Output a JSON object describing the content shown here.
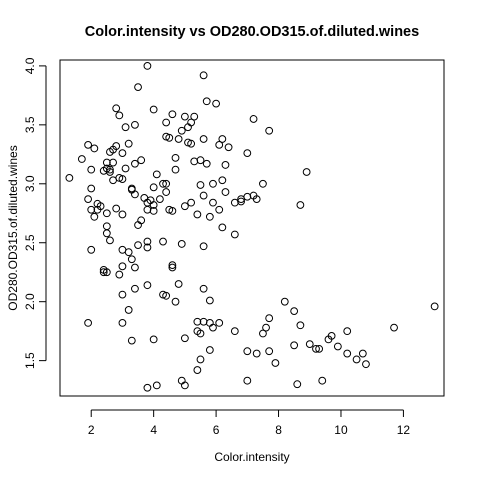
{
  "chart_data": {
    "type": "scatter",
    "title": "Color.intensity vs OD280.OD315.of.diluted.wines",
    "xlabel": "Color.intensity",
    "ylabel": "OD280.OD315.of.diluted.wines",
    "xlim": [
      1.0,
      13.3
    ],
    "ylim": [
      1.2,
      4.05
    ],
    "xticks": [
      2,
      4,
      6,
      8,
      10,
      12
    ],
    "yticks": [
      1.5,
      2.0,
      2.5,
      3.0,
      3.5,
      4.0
    ],
    "xtick_labels": [
      "2",
      "4",
      "6",
      "8",
      "10",
      "12"
    ],
    "ytick_labels": [
      "1.5",
      "2.0",
      "2.5",
      "3.0",
      "3.5",
      "4.0"
    ],
    "grid": false,
    "marker": "open-circle",
    "points": [
      [
        3.8,
        4.0
      ],
      [
        5.6,
        3.92
      ],
      [
        4.0,
        3.63
      ],
      [
        5.7,
        3.7
      ],
      [
        6.0,
        3.68
      ],
      [
        3.5,
        3.82
      ],
      [
        7.2,
        3.55
      ],
      [
        7.7,
        3.45
      ],
      [
        5.0,
        3.57
      ],
      [
        5.3,
        3.57
      ],
      [
        4.6,
        3.59
      ],
      [
        4.4,
        3.52
      ],
      [
        2.8,
        3.64
      ],
      [
        2.9,
        3.58
      ],
      [
        3.1,
        3.48
      ],
      [
        3.4,
        3.5
      ],
      [
        5.2,
        3.52
      ],
      [
        4.9,
        3.45
      ],
      [
        5.1,
        3.48
      ],
      [
        4.8,
        3.38
      ],
      [
        5.6,
        3.38
      ],
      [
        6.2,
        3.38
      ],
      [
        6.1,
        3.33
      ],
      [
        6.4,
        3.31
      ],
      [
        4.4,
        3.4
      ],
      [
        4.5,
        3.39
      ],
      [
        5.1,
        3.35
      ],
      [
        5.2,
        3.34
      ],
      [
        3.2,
        3.34
      ],
      [
        3.0,
        3.26
      ],
      [
        7.0,
        3.26
      ],
      [
        1.9,
        3.33
      ],
      [
        2.1,
        3.3
      ],
      [
        2.6,
        3.27
      ],
      [
        2.7,
        3.29
      ],
      [
        2.8,
        3.32
      ],
      [
        1.7,
        3.21
      ],
      [
        2.5,
        3.18
      ],
      [
        2.7,
        3.18
      ],
      [
        3.4,
        3.17
      ],
      [
        3.6,
        3.2
      ],
      [
        4.7,
        3.22
      ],
      [
        5.3,
        3.19
      ],
      [
        5.5,
        3.2
      ],
      [
        5.7,
        3.17
      ],
      [
        6.3,
        3.16
      ],
      [
        2.0,
        3.12
      ],
      [
        2.5,
        3.13
      ],
      [
        2.6,
        3.12
      ],
      [
        2.6,
        3.1
      ],
      [
        2.4,
        3.11
      ],
      [
        3.1,
        3.13
      ],
      [
        4.1,
        3.08
      ],
      [
        4.7,
        3.12
      ],
      [
        8.9,
        3.1
      ],
      [
        1.3,
        3.05
      ],
      [
        2.7,
        3.03
      ],
      [
        2.9,
        3.05
      ],
      [
        3.0,
        3.04
      ],
      [
        4.3,
        3.0
      ],
      [
        4.4,
        3.0
      ],
      [
        6.2,
        3.03
      ],
      [
        5.5,
        2.99
      ],
      [
        5.9,
        3.0
      ],
      [
        7.5,
        3.0
      ],
      [
        3.3,
        2.96
      ],
      [
        3.3,
        2.95
      ],
      [
        4.0,
        2.97
      ],
      [
        2.0,
        2.96
      ],
      [
        3.4,
        2.91
      ],
      [
        4.4,
        2.93
      ],
      [
        4.2,
        2.87
      ],
      [
        3.9,
        2.86
      ],
      [
        3.7,
        2.88
      ],
      [
        5.6,
        2.9
      ],
      [
        6.3,
        2.93
      ],
      [
        7.2,
        2.9
      ],
      [
        7.3,
        2.87
      ],
      [
        7.0,
        2.89
      ],
      [
        6.8,
        2.87
      ],
      [
        6.8,
        2.85
      ],
      [
        6.6,
        2.84
      ],
      [
        1.9,
        2.87
      ],
      [
        2.2,
        2.83
      ],
      [
        2.3,
        2.81
      ],
      [
        2.0,
        2.78
      ],
      [
        2.2,
        2.78
      ],
      [
        2.1,
        2.72
      ],
      [
        2.5,
        2.75
      ],
      [
        2.8,
        2.79
      ],
      [
        3.0,
        2.74
      ],
      [
        3.8,
        2.84
      ],
      [
        4.0,
        2.82
      ],
      [
        3.8,
        2.78
      ],
      [
        4.0,
        2.77
      ],
      [
        4.5,
        2.78
      ],
      [
        4.6,
        2.77
      ],
      [
        5.0,
        2.81
      ],
      [
        5.2,
        2.84
      ],
      [
        5.9,
        2.84
      ],
      [
        6.1,
        2.78
      ],
      [
        8.7,
        2.82
      ],
      [
        5.4,
        2.74
      ],
      [
        5.8,
        2.72
      ],
      [
        3.6,
        2.69
      ],
      [
        3.5,
        2.65
      ],
      [
        2.5,
        2.64
      ],
      [
        2.5,
        2.58
      ],
      [
        2.6,
        2.52
      ],
      [
        3.0,
        2.44
      ],
      [
        3.5,
        2.48
      ],
      [
        3.8,
        2.46
      ],
      [
        3.8,
        2.51
      ],
      [
        4.3,
        2.51
      ],
      [
        4.9,
        2.49
      ],
      [
        5.6,
        2.47
      ],
      [
        6.2,
        2.63
      ],
      [
        6.6,
        2.57
      ],
      [
        2.0,
        2.44
      ],
      [
        3.2,
        2.42
      ],
      [
        3.3,
        2.36
      ],
      [
        4.6,
        2.31
      ],
      [
        4.6,
        2.29
      ],
      [
        3.0,
        2.3
      ],
      [
        2.4,
        2.27
      ],
      [
        2.4,
        2.25
      ],
      [
        2.5,
        2.25
      ],
      [
        2.9,
        2.23
      ],
      [
        3.4,
        2.29
      ],
      [
        3.8,
        2.14
      ],
      [
        4.8,
        2.15
      ],
      [
        3.4,
        2.11
      ],
      [
        3.0,
        2.06
      ],
      [
        4.3,
        2.06
      ],
      [
        4.4,
        2.05
      ],
      [
        5.6,
        2.11
      ],
      [
        5.8,
        2.01
      ],
      [
        4.7,
        2.0
      ],
      [
        8.2,
        2.0
      ],
      [
        8.5,
        1.92
      ],
      [
        3.2,
        1.93
      ],
      [
        1.9,
        1.82
      ],
      [
        3.0,
        1.82
      ],
      [
        5.4,
        1.83
      ],
      [
        5.6,
        1.83
      ],
      [
        5.8,
        1.82
      ],
      [
        6.1,
        1.82
      ],
      [
        7.7,
        1.86
      ],
      [
        7.6,
        1.78
      ],
      [
        7.5,
        1.73
      ],
      [
        8.7,
        1.8
      ],
      [
        6.6,
        1.75
      ],
      [
        3.3,
        1.67
      ],
      [
        4.0,
        1.68
      ],
      [
        5.0,
        1.69
      ],
      [
        5.4,
        1.75
      ],
      [
        5.5,
        1.73
      ],
      [
        5.9,
        1.78
      ],
      [
        7.0,
        1.58
      ],
      [
        7.3,
        1.56
      ],
      [
        7.7,
        1.58
      ],
      [
        7.9,
        1.48
      ],
      [
        8.5,
        1.63
      ],
      [
        9.0,
        1.64
      ],
      [
        9.2,
        1.6
      ],
      [
        9.3,
        1.6
      ],
      [
        9.6,
        1.68
      ],
      [
        9.7,
        1.71
      ],
      [
        9.9,
        1.62
      ],
      [
        10.2,
        1.56
      ],
      [
        10.2,
        1.75
      ],
      [
        10.5,
        1.51
      ],
      [
        10.7,
        1.56
      ],
      [
        10.8,
        1.47
      ],
      [
        11.7,
        1.78
      ],
      [
        13.0,
        1.96
      ],
      [
        5.8,
        1.59
      ],
      [
        5.5,
        1.51
      ],
      [
        5.4,
        1.42
      ],
      [
        7.0,
        1.33
      ],
      [
        8.6,
        1.3
      ],
      [
        9.4,
        1.33
      ],
      [
        4.9,
        1.33
      ],
      [
        5.0,
        1.29
      ],
      [
        3.8,
        1.27
      ],
      [
        4.1,
        1.29
      ]
    ]
  }
}
